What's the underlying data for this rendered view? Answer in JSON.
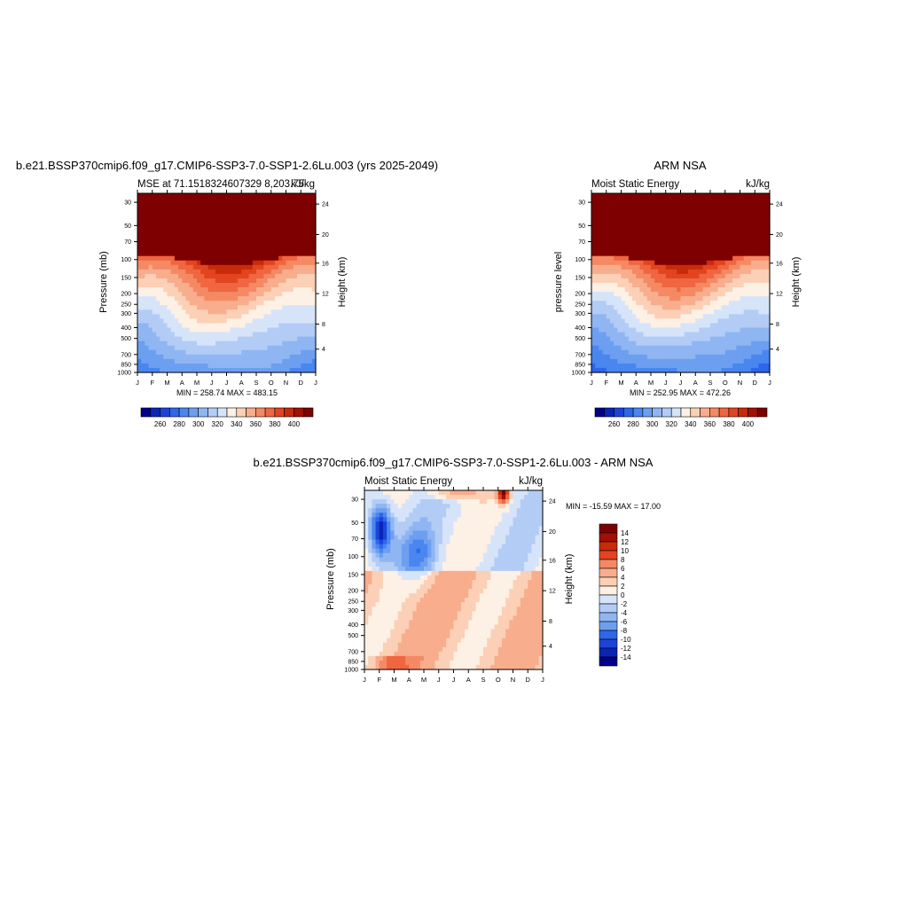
{
  "colors": {
    "ramp": [
      "#00008b",
      "#0a24b4",
      "#1c44d8",
      "#2e66ec",
      "#4a86f0",
      "#6d9ff0",
      "#8fb6f2",
      "#b2ccf6",
      "#d6e4fa",
      "#fdf0e4",
      "#fbd0b6",
      "#f8ad8c",
      "#f48964",
      "#ef6640",
      "#e24420",
      "#c82a0a",
      "#a31004",
      "#7e0000"
    ]
  },
  "chart_data": [
    {
      "type": "heatmap",
      "title": "b.e21.BSSP370cmip6.f09_g17.CMIP6-SSP3-7.0-SSP1-2.6Lu.003 (yrs 2025-2049)",
      "subtitle_left": "MSE at 71.1518324607329 8,203.75",
      "subtitle_right": "kJ/kg",
      "ylabel": "Pressure (mb)",
      "ylabel_right": "Height (km)",
      "months": [
        "J",
        "F",
        "M",
        "A",
        "M",
        "J",
        "J",
        "A",
        "S",
        "O",
        "N",
        "D",
        "J"
      ],
      "pressure_ticks": [
        "30",
        "50",
        "70",
        "100",
        "150",
        "200",
        "250",
        "300",
        "400",
        "500",
        "700",
        "850",
        "1000"
      ],
      "height_ticks": [
        "24",
        "20",
        "16",
        "12",
        "8",
        "4"
      ],
      "minmax": "MIN = 258.74 MAX = 483.15",
      "colorbar_labels": [
        "260",
        "280",
        "300",
        "320",
        "340",
        "360",
        "380",
        "400"
      ],
      "value_range": [
        258.74,
        483.15
      ]
    },
    {
      "type": "heatmap",
      "title": "ARM NSA",
      "subtitle_left": "Moist Static Energy",
      "subtitle_right": "kJ/kg",
      "ylabel": "pressure level",
      "ylabel_right": "Height (km)",
      "months": [
        "J",
        "F",
        "M",
        "A",
        "M",
        "J",
        "J",
        "A",
        "S",
        "O",
        "N",
        "D",
        "J"
      ],
      "pressure_ticks": [
        "30",
        "50",
        "70",
        "100",
        "150",
        "200",
        "250",
        "300",
        "400",
        "500",
        "700",
        "850",
        "1000"
      ],
      "height_ticks": [
        "24",
        "20",
        "16",
        "12",
        "8",
        "4"
      ],
      "minmax": "MIN = 252.95 MAX = 472.26",
      "colorbar_labels": [
        "260",
        "280",
        "300",
        "320",
        "340",
        "360",
        "380",
        "400"
      ],
      "value_range": [
        252.95,
        472.26
      ]
    },
    {
      "type": "heatmap",
      "title": "b.e21.BSSP370cmip6.f09_g17.CMIP6-SSP3-7.0-SSP1-2.6Lu.003 - ARM NSA",
      "subtitle_left": "Moist Static Energy",
      "subtitle_right": "kJ/kg",
      "ylabel": "Pressure (mb)",
      "ylabel_right": "Height (km)",
      "months": [
        "J",
        "F",
        "M",
        "A",
        "M",
        "J",
        "J",
        "A",
        "S",
        "O",
        "N",
        "D",
        "J"
      ],
      "pressure_ticks": [
        "30",
        "50",
        "70",
        "100",
        "150",
        "200",
        "250",
        "300",
        "400",
        "500",
        "700",
        "850",
        "1000"
      ],
      "height_ticks": [
        "24",
        "20",
        "16",
        "12",
        "8",
        "4"
      ],
      "minmax": "MIN = -15.59 MAX =  17.00",
      "colorbar_labels": [
        "14",
        "12",
        "10",
        "8",
        "6",
        "4",
        "2",
        "0",
        "-2",
        "-4",
        "-6",
        "-8",
        "-10",
        "-12",
        "-14"
      ],
      "value_range": [
        -15.59,
        17.0
      ]
    }
  ]
}
